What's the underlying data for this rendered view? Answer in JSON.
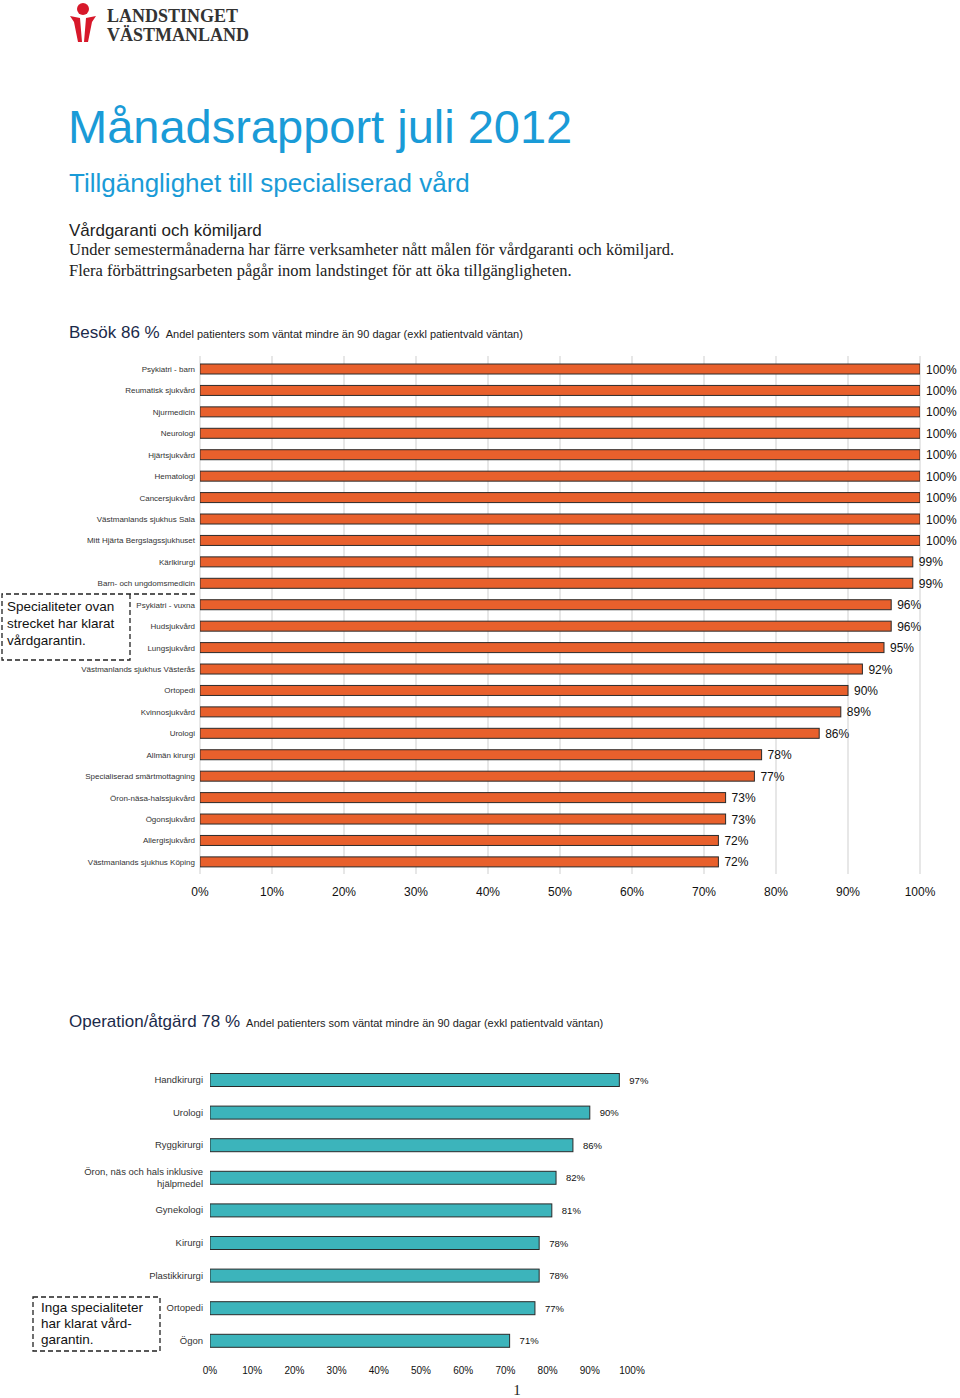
{
  "logo": [
    "LANDSTINGET",
    "VÄSTMANLAND"
  ],
  "title": "Månadsrapport juli 2012",
  "subtitle": "Tillgänglighet till specialiserad vård",
  "heading": "Vårdgaranti och kömiljard",
  "paragraph": [
    "Under semestermånaderna har färre verksamheter nått målen för vårdgaranti och kömiljard.",
    "Flera förbättringsarbeten pågår inom landstinget för att öka tillgängligheten."
  ],
  "page_number": "1",
  "chart_data": [
    {
      "type": "bar",
      "orientation": "horizontal",
      "title": "Besök 86 %",
      "subtitle": "Andel patienters som väntat mindre än 90 dagar (exkl patientvald väntan)",
      "categories": [
        "Psykiatri - barn",
        "Reumatisk sjukvård",
        "Njurmedicin",
        "Neurologi",
        "Hjärtsjukvård",
        "Hematologi",
        "Cancersjukvård",
        "Västmanlands sjukhus Sala",
        "Mitt Hjärta Bergslagssjukhuset",
        "Kärlkirurgi",
        "Barn- och ungdomsmedicin",
        "Psykiatri - vuxna",
        "Hudsjukvård",
        "Lungsjukvård",
        "Västmanlands sjukhus Västerås",
        "Ortopedi",
        "Kvinnosjukvård",
        "Urologi",
        "Allmän kirurgi",
        "Specialiserad smärtmottagning",
        "Öron-näsa-halssjukvård",
        "Ögonsjukvård",
        "Allergisjukvård",
        "Västmanlands sjukhus Köping"
      ],
      "values": [
        100,
        100,
        100,
        100,
        100,
        100,
        100,
        100,
        100,
        99,
        99,
        96,
        96,
        95,
        92,
        90,
        89,
        86,
        78,
        77,
        73,
        73,
        72,
        72
      ],
      "value_labels": [
        "100%",
        "100%",
        "100%",
        "100%",
        "100%",
        "100%",
        "100%",
        "100%",
        "100%",
        "99%",
        "99%",
        "96%",
        "96%",
        "95%",
        "92%",
        "90%",
        "89%",
        "86%",
        "78%",
        "77%",
        "73%",
        "73%",
        "72%",
        "72%"
      ],
      "data_labels": true,
      "color": "#e8602c",
      "xlim": [
        0,
        100
      ],
      "xticks": [
        {
          "value": 0,
          "label": "0%"
        },
        {
          "value": 10,
          "label": "10%"
        },
        {
          "value": 20,
          "label": "20%"
        },
        {
          "value": 30,
          "label": "30%"
        },
        {
          "value": 40,
          "label": "40%"
        },
        {
          "value": 50,
          "label": "50%"
        },
        {
          "value": 60,
          "label": "60%"
        },
        {
          "value": 70,
          "label": "70%"
        },
        {
          "value": 80,
          "label": "80%"
        },
        {
          "value": 90,
          "label": "90%"
        },
        {
          "value": 100,
          "label": "100%"
        }
      ],
      "grid": true,
      "annotations": [
        "Specialiteter ovan",
        "strecket har klarat",
        "vårdgarantin."
      ]
    },
    {
      "type": "bar",
      "orientation": "horizontal",
      "title": "Operation/åtgärd 78 %",
      "subtitle": "Andel patienters som väntat mindre än 90 dagar (exkl patientvald väntan)",
      "categories": [
        "Handkirurgi",
        "Urologi",
        "Ryggkirurgi",
        "Öron, näs och hals inklusive hjälpmedel",
        "Gynekologi",
        "Kirurgi",
        "Plastikkirurgi",
        "Ortopedi",
        "Ögon"
      ],
      "values": [
        97,
        90,
        86,
        82,
        81,
        78,
        78,
        77,
        71
      ],
      "value_labels": [
        "97%",
        "90%",
        "86%",
        "82%",
        "81%",
        "78%",
        "78%",
        "77%",
        "71%"
      ],
      "data_labels": true,
      "color": "#3cb4bb",
      "xlim": [
        0,
        100
      ],
      "xticks": [
        {
          "value": 0,
          "label": "0%"
        },
        {
          "value": 10,
          "label": "10%"
        },
        {
          "value": 20,
          "label": "20%"
        },
        {
          "value": 30,
          "label": "30%"
        },
        {
          "value": 40,
          "label": "40%"
        },
        {
          "value": 50,
          "label": "50%"
        },
        {
          "value": 60,
          "label": "60%"
        },
        {
          "value": 70,
          "label": "70%"
        },
        {
          "value": 80,
          "label": "80%"
        },
        {
          "value": 90,
          "label": "90%"
        },
        {
          "value": 100,
          "label": "100%"
        }
      ],
      "grid": false,
      "annotations": [
        "Inga specialiteter",
        "har klarat vård-",
        "garantin."
      ]
    }
  ]
}
